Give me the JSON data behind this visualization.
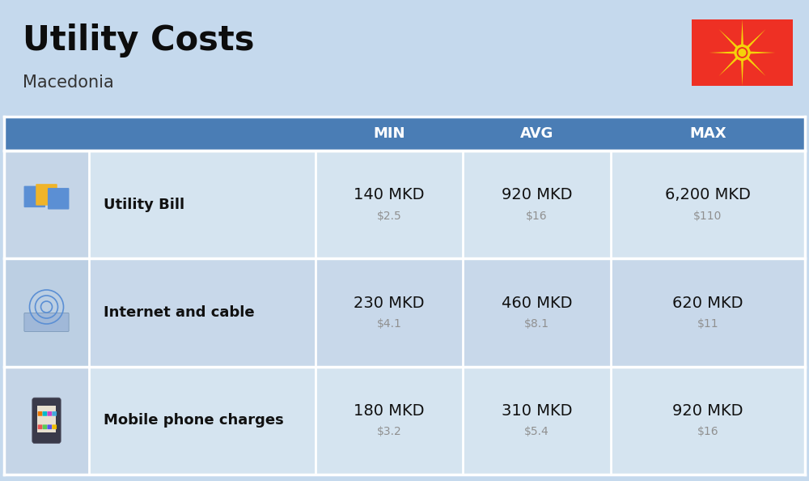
{
  "title": "Utility Costs",
  "subtitle": "Macedonia",
  "background_color": "#c5d9ed",
  "header_bg_color": "#4a7db5",
  "header_text_color": "#ffffff",
  "row_bg_color_light": "#d5e4f0",
  "row_bg_color_dark": "#c8d8ea",
  "icon_col_bg": "#bdd0e5",
  "col_headers": [
    "MIN",
    "AVG",
    "MAX"
  ],
  "rows": [
    {
      "label": "Utility Bill",
      "min_mkd": "140 MKD",
      "min_usd": "$2.5",
      "avg_mkd": "920 MKD",
      "avg_usd": "$16",
      "max_mkd": "6,200 MKD",
      "max_usd": "$110"
    },
    {
      "label": "Internet and cable",
      "min_mkd": "230 MKD",
      "min_usd": "$4.1",
      "avg_mkd": "460 MKD",
      "avg_usd": "$8.1",
      "max_mkd": "620 MKD",
      "max_usd": "$11"
    },
    {
      "label": "Mobile phone charges",
      "min_mkd": "180 MKD",
      "min_usd": "$3.2",
      "avg_mkd": "310 MKD",
      "avg_usd": "$5.4",
      "max_mkd": "920 MKD",
      "max_usd": "$16"
    }
  ],
  "flag_red": "#EE3024",
  "flag_yellow": "#F5D20A",
  "mkd_fontsize": 14,
  "usd_fontsize": 10,
  "usd_color": "#909090",
  "label_fontsize": 13,
  "header_fontsize": 13
}
